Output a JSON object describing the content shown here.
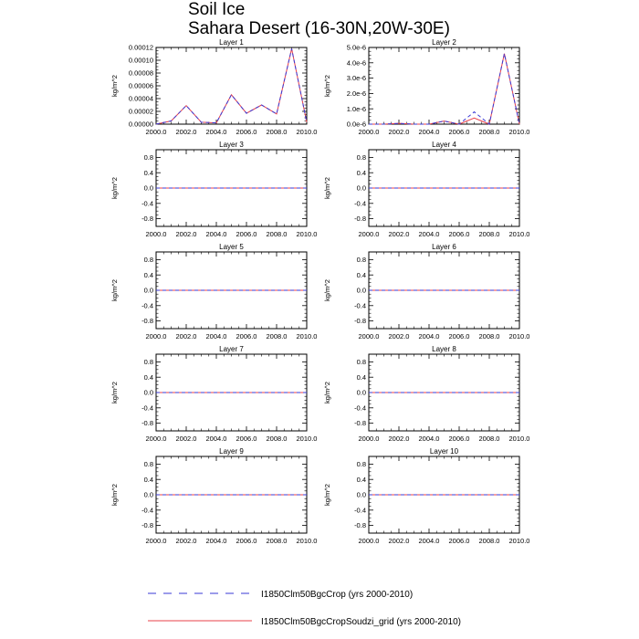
{
  "title": "Soil Ice",
  "subtitle": "Sahara Desert (16-30N,20W-30E)",
  "colors": {
    "series_dashed": "#3a3ad6",
    "series_solid": "#e8424a",
    "axis": "#000000"
  },
  "chart_data": {
    "type": "line",
    "shared": {
      "x": [
        2000,
        2001,
        2002,
        2003,
        2004,
        2005,
        2006,
        2007,
        2008,
        2009,
        2010
      ],
      "xticks": [
        "2000.0",
        "2002.0",
        "2004.0",
        "2006.0",
        "2008.0",
        "2010.0"
      ],
      "xlim": [
        2000,
        2010
      ],
      "ylabel": "kg/m^2",
      "legend": [
        {
          "label": "I1850Clm50BgcCrop (yrs 2000-2010)",
          "style": "dashed"
        },
        {
          "label": "I1850Clm50BgcCropSoudzi_grid (yrs 2000-2010)",
          "style": "solid"
        }
      ],
      "legend_position": "bottom"
    },
    "panels": [
      {
        "title": "Layer 1",
        "ylim": [
          0,
          0.00012
        ],
        "yticks": [
          "0.00000",
          "0.00002",
          "0.00004",
          "0.00006",
          "0.00008",
          "0.00010",
          "0.00012"
        ],
        "ytick_values": [
          0,
          2e-05,
          4e-05,
          6e-05,
          8e-05,
          0.0001,
          0.00012
        ],
        "series": [
          {
            "values": [
              0.0,
              5e-06,
              2.9e-05,
              3e-06,
              2e-06,
              4.6e-05,
              1.7e-05,
              3e-05,
              1.6e-05,
              0.000118,
              3e-06
            ]
          },
          {
            "values": [
              0.0,
              5e-06,
              2.9e-05,
              3e-06,
              2e-06,
              4.6e-05,
              1.7e-05,
              3e-05,
              1.6e-05,
              0.000118,
              3e-06
            ]
          }
        ]
      },
      {
        "title": "Layer 2",
        "ylim": [
          0,
          5e-06
        ],
        "yticks": [
          "0.0e-6",
          "1.0e-6",
          "2.0e-6",
          "3.0e-6",
          "4.0e-6",
          "5.0e-6"
        ],
        "ytick_values": [
          0,
          1e-06,
          2e-06,
          3e-06,
          4e-06,
          5e-06
        ],
        "series": [
          {
            "values": [
              0.0,
              0.0,
              5e-08,
              0.0,
              0.0,
              2e-07,
              0.0,
              8e-07,
              0.0,
              4.6e-06,
              0.0
            ]
          },
          {
            "values": [
              0.0,
              0.0,
              5e-08,
              0.0,
              0.0,
              2e-07,
              0.0,
              4e-07,
              0.0,
              4.6e-06,
              0.0
            ]
          }
        ]
      },
      {
        "title": "Layer 3",
        "ylim": [
          -1,
          1
        ],
        "yticks": [
          "0.8",
          "0.4",
          "0.0",
          "-0.4",
          "-0.8"
        ],
        "ytick_values": [
          0.8,
          0.4,
          0,
          -0.4,
          -0.8
        ],
        "series": [
          {
            "values": [
              0,
              0,
              0,
              0,
              0,
              0,
              0,
              0,
              0,
              0,
              0
            ]
          },
          {
            "values": [
              0,
              0,
              0,
              0,
              0,
              0,
              0,
              0,
              0,
              0,
              0
            ]
          }
        ]
      },
      {
        "title": "Layer 4",
        "ylim": [
          -1,
          1
        ],
        "yticks": [
          "0.8",
          "0.4",
          "0.0",
          "-0.4",
          "-0.8"
        ],
        "ytick_values": [
          0.8,
          0.4,
          0,
          -0.4,
          -0.8
        ],
        "series": [
          {
            "values": [
              0,
              0,
              0,
              0,
              0,
              0,
              0,
              0,
              0,
              0,
              0
            ]
          },
          {
            "values": [
              0,
              0,
              0,
              0,
              0,
              0,
              0,
              0,
              0,
              0,
              0
            ]
          }
        ]
      },
      {
        "title": "Layer 5",
        "ylim": [
          -1,
          1
        ],
        "yticks": [
          "0.8",
          "0.4",
          "0.0",
          "-0.4",
          "-0.8"
        ],
        "ytick_values": [
          0.8,
          0.4,
          0,
          -0.4,
          -0.8
        ],
        "series": [
          {
            "values": [
              0,
              0,
              0,
              0,
              0,
              0,
              0,
              0,
              0,
              0,
              0
            ]
          },
          {
            "values": [
              0,
              0,
              0,
              0,
              0,
              0,
              0,
              0,
              0,
              0,
              0
            ]
          }
        ]
      },
      {
        "title": "Layer 6",
        "ylim": [
          -1,
          1
        ],
        "yticks": [
          "0.8",
          "0.4",
          "0.0",
          "-0.4",
          "-0.8"
        ],
        "ytick_values": [
          0.8,
          0.4,
          0,
          -0.4,
          -0.8
        ],
        "series": [
          {
            "values": [
              0,
              0,
              0,
              0,
              0,
              0,
              0,
              0,
              0,
              0,
              0
            ]
          },
          {
            "values": [
              0,
              0,
              0,
              0,
              0,
              0,
              0,
              0,
              0,
              0,
              0
            ]
          }
        ]
      },
      {
        "title": "Layer 7",
        "ylim": [
          -1,
          1
        ],
        "yticks": [
          "0.8",
          "0.4",
          "0.0",
          "-0.4",
          "-0.8"
        ],
        "ytick_values": [
          0.8,
          0.4,
          0,
          -0.4,
          -0.8
        ],
        "series": [
          {
            "values": [
              0,
              0,
              0,
              0,
              0,
              0,
              0,
              0,
              0,
              0,
              0
            ]
          },
          {
            "values": [
              0,
              0,
              0,
              0,
              0,
              0,
              0,
              0,
              0,
              0,
              0
            ]
          }
        ]
      },
      {
        "title": "Layer 8",
        "ylim": [
          -1,
          1
        ],
        "yticks": [
          "0.8",
          "0.4",
          "0.0",
          "-0.4",
          "-0.8"
        ],
        "ytick_values": [
          0.8,
          0.4,
          0,
          -0.4,
          -0.8
        ],
        "series": [
          {
            "values": [
              0,
              0,
              0,
              0,
              0,
              0,
              0,
              0,
              0,
              0,
              0
            ]
          },
          {
            "values": [
              0,
              0,
              0,
              0,
              0,
              0,
              0,
              0,
              0,
              0,
              0
            ]
          }
        ]
      },
      {
        "title": "Layer 9",
        "ylim": [
          -1,
          1
        ],
        "yticks": [
          "0.8",
          "0.4",
          "0.0",
          "-0.4",
          "-0.8"
        ],
        "ytick_values": [
          0.8,
          0.4,
          0,
          -0.4,
          -0.8
        ],
        "series": [
          {
            "values": [
              0,
              0,
              0,
              0,
              0,
              0,
              0,
              0,
              0,
              0,
              0
            ]
          },
          {
            "values": [
              0,
              0,
              0,
              0,
              0,
              0,
              0,
              0,
              0,
              0,
              0
            ]
          }
        ]
      },
      {
        "title": "Layer 10",
        "ylim": [
          -1,
          1
        ],
        "yticks": [
          "0.8",
          "0.4",
          "0.0",
          "-0.4",
          "-0.8"
        ],
        "ytick_values": [
          0.8,
          0.4,
          0,
          -0.4,
          -0.8
        ],
        "series": [
          {
            "values": [
              0,
              0,
              0,
              0,
              0,
              0,
              0,
              0,
              0,
              0,
              0
            ]
          },
          {
            "values": [
              0,
              0,
              0,
              0,
              0,
              0,
              0,
              0,
              0,
              0,
              0
            ]
          }
        ]
      }
    ]
  }
}
